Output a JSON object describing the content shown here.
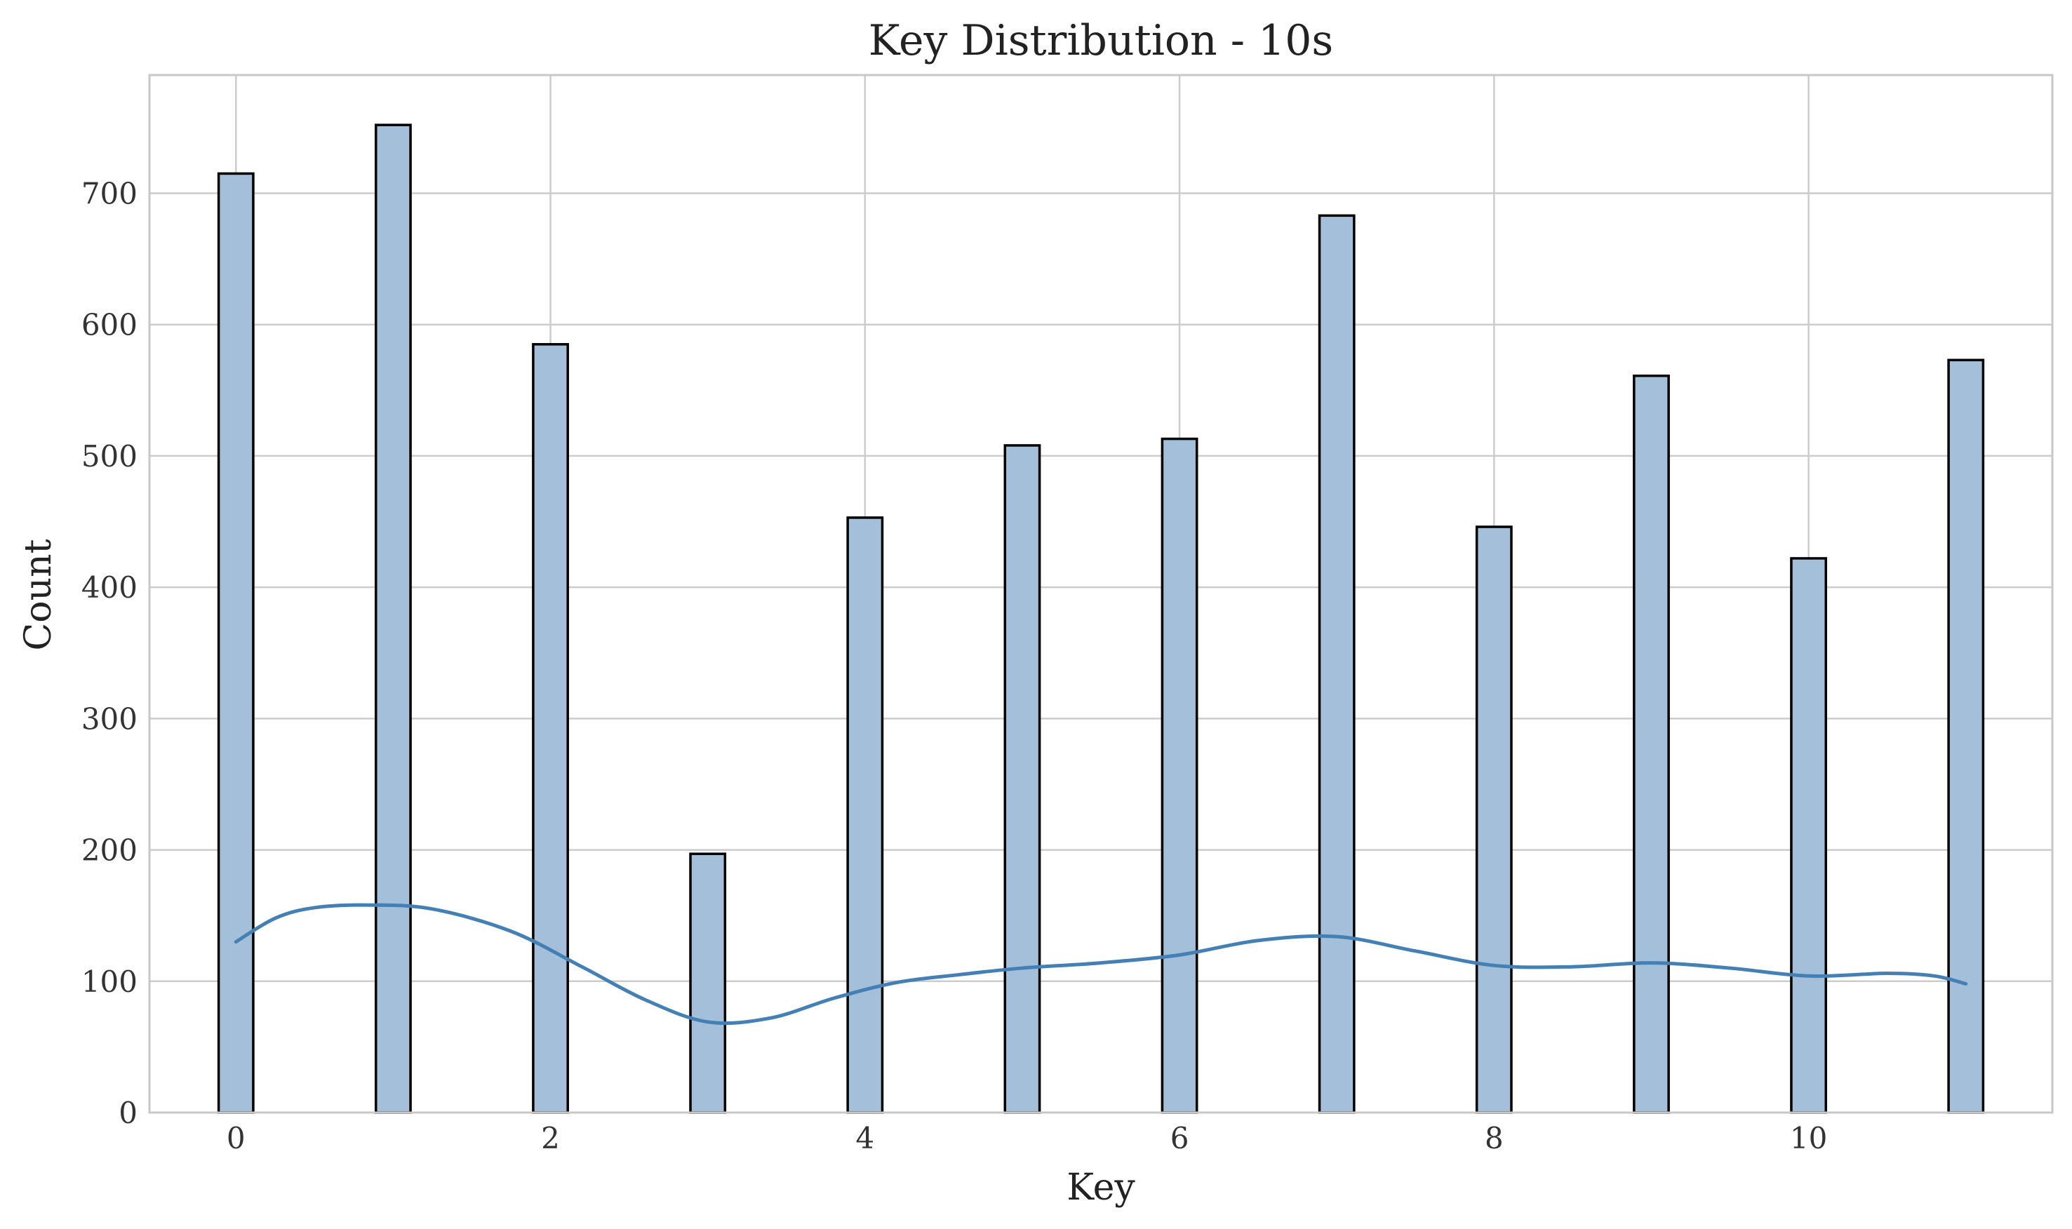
{
  "chart_data": {
    "type": "bar",
    "title": "Key Distribution - 10s",
    "xlabel": "Key",
    "ylabel": "Count",
    "x": [
      0,
      1,
      2,
      3,
      4,
      5,
      6,
      7,
      8,
      9,
      10,
      11
    ],
    "values": [
      715,
      752,
      585,
      197,
      453,
      508,
      513,
      683,
      446,
      561,
      422,
      573
    ],
    "kde": {
      "x": [
        0,
        0.25,
        0.5,
        0.85,
        1.25,
        1.75,
        2.2,
        2.6,
        3.0,
        3.4,
        3.8,
        4.2,
        4.6,
        5.0,
        5.5,
        6.0,
        6.5,
        7.0,
        7.5,
        8.0,
        8.5,
        9.0,
        9.5,
        10.0,
        10.5,
        10.8,
        11.0
      ],
      "y": [
        130,
        148,
        156,
        158,
        155,
        138,
        111,
        86,
        69,
        72,
        87,
        99,
        105,
        110,
        114,
        120,
        131,
        134,
        123,
        112,
        111,
        114,
        110,
        104,
        106,
        104,
        98
      ]
    },
    "xlim": [
      -0.55,
      11.55
    ],
    "ylim": [
      0,
      790
    ],
    "xticks": [
      0,
      2,
      4,
      6,
      8,
      10
    ],
    "yticks": [
      0,
      100,
      200,
      300,
      400,
      500,
      600,
      700
    ],
    "grid": true,
    "colors": {
      "bar_fill": "#a3bfda",
      "bar_edge": "#000000",
      "kde_line": "#4580b5",
      "grid": "#cccccc"
    }
  }
}
